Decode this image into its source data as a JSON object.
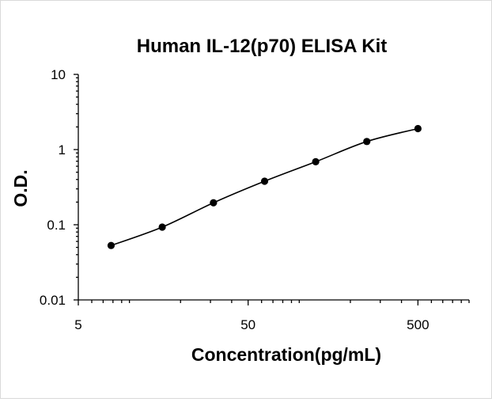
{
  "chart_data": {
    "type": "scatter",
    "title": "Human IL-12(p70) ELISA Kit",
    "xlabel": "Concentration(pg/mL)",
    "ylabel": "O.D.",
    "x_scale": "log",
    "y_scale": "log",
    "xlim": [
      5,
      1000
    ],
    "ylim": [
      0.01,
      10
    ],
    "x_tick_labels": [
      {
        "value": 5,
        "label": "5"
      },
      {
        "value": 50,
        "label": "50"
      },
      {
        "value": 500,
        "label": "500"
      }
    ],
    "y_tick_labels": [
      {
        "value": 10,
        "label": "10"
      },
      {
        "value": 1,
        "label": "1"
      },
      {
        "value": 0.1,
        "label": "0.1"
      },
      {
        "value": 0.01,
        "label": "0.01"
      }
    ],
    "grid": false,
    "legend": "none",
    "colors": {
      "points": "#000000",
      "curve": "#000000"
    },
    "series": [
      {
        "x": [
          7.8,
          15.6,
          31.25,
          62.5,
          125,
          250,
          500
        ],
        "y": [
          0.053,
          0.093,
          0.196,
          0.379,
          0.689,
          1.28,
          1.9
        ]
      }
    ]
  }
}
